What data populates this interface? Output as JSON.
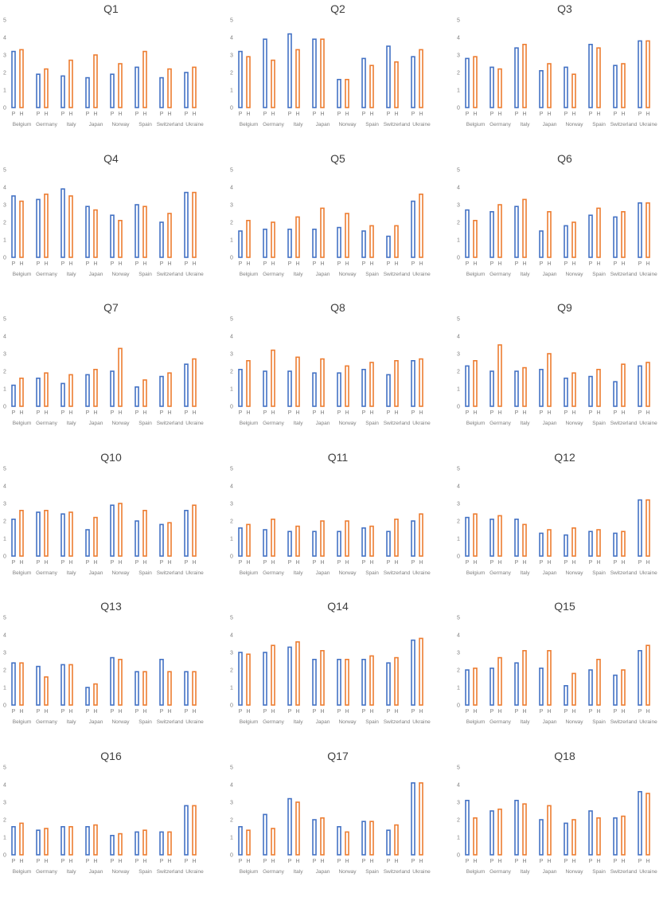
{
  "colors": {
    "P": "#4472c4",
    "H": "#ed7d31",
    "text": "#7f7f7f",
    "title": "#404040"
  },
  "chart_data": [
    {
      "type": "bar",
      "title": "Q1",
      "categories": [
        "Belgium",
        "Germany",
        "Italy",
        "Japan",
        "Norway",
        "Spain",
        "Switzerland",
        "Ukraine"
      ],
      "subcategories": [
        "P",
        "H"
      ],
      "ylim": [
        0,
        5
      ],
      "yticks": [
        "0",
        "1",
        "2",
        "3",
        "4",
        "5"
      ],
      "grid": false,
      "series": [
        {
          "name": "P",
          "values": [
            3.2,
            1.9,
            1.8,
            1.7,
            1.9,
            2.3,
            1.7,
            2.0
          ]
        },
        {
          "name": "H",
          "values": [
            3.3,
            2.2,
            2.7,
            3.0,
            2.5,
            3.2,
            2.2,
            2.3
          ]
        }
      ]
    },
    {
      "type": "bar",
      "title": "Q2",
      "categories": [
        "Belgium",
        "Germany",
        "Italy",
        "Japan",
        "Norway",
        "Spain",
        "Switzerland",
        "Ukraine"
      ],
      "subcategories": [
        "P",
        "H"
      ],
      "ylim": [
        0,
        5
      ],
      "yticks": [
        "0",
        "1",
        "2",
        "3",
        "4",
        "5"
      ],
      "grid": false,
      "series": [
        {
          "name": "P",
          "values": [
            3.2,
            3.9,
            4.2,
            3.9,
            1.6,
            2.8,
            3.5,
            2.9
          ]
        },
        {
          "name": "H",
          "values": [
            2.9,
            2.7,
            3.3,
            3.9,
            1.6,
            2.4,
            2.6,
            3.3
          ]
        }
      ]
    },
    {
      "type": "bar",
      "title": "Q3",
      "categories": [
        "Belgium",
        "Germany",
        "Italy",
        "Japan",
        "Norway",
        "Spain",
        "Switzerland",
        "Ukraine"
      ],
      "subcategories": [
        "P",
        "H"
      ],
      "ylim": [
        0,
        5
      ],
      "yticks": [
        "0",
        "1",
        "2",
        "3",
        "4",
        "5"
      ],
      "grid": false,
      "series": [
        {
          "name": "P",
          "values": [
            2.8,
            2.3,
            3.4,
            2.1,
            2.3,
            3.6,
            2.4,
            3.8
          ]
        },
        {
          "name": "H",
          "values": [
            2.9,
            2.2,
            3.6,
            2.5,
            1.9,
            3.4,
            2.5,
            3.8
          ]
        }
      ]
    },
    {
      "type": "bar",
      "title": "Q4",
      "categories": [
        "Belgium",
        "Germany",
        "Italy",
        "Japan",
        "Norway",
        "Spain",
        "Switzerland",
        "Ukraine"
      ],
      "subcategories": [
        "P",
        "H"
      ],
      "ylim": [
        0,
        5
      ],
      "yticks": [
        "0",
        "1",
        "2",
        "3",
        "4",
        "5"
      ],
      "grid": false,
      "series": [
        {
          "name": "P",
          "values": [
            3.5,
            3.3,
            3.9,
            2.9,
            2.4,
            3.0,
            2.0,
            3.7
          ]
        },
        {
          "name": "H",
          "values": [
            3.2,
            3.6,
            3.5,
            2.7,
            2.1,
            2.9,
            2.5,
            3.7
          ]
        }
      ]
    },
    {
      "type": "bar",
      "title": "Q5",
      "categories": [
        "Belgium",
        "Germany",
        "Italy",
        "Japan",
        "Norway",
        "Spain",
        "Switzerland",
        "Ukraine"
      ],
      "subcategories": [
        "P",
        "H"
      ],
      "ylim": [
        0,
        5
      ],
      "yticks": [
        "0",
        "1",
        "2",
        "3",
        "4",
        "5"
      ],
      "grid": false,
      "series": [
        {
          "name": "P",
          "values": [
            1.5,
            1.6,
            1.6,
            1.6,
            1.7,
            1.5,
            1.2,
            3.2
          ]
        },
        {
          "name": "H",
          "values": [
            2.1,
            2.0,
            2.3,
            2.8,
            2.5,
            1.8,
            1.8,
            3.6
          ]
        }
      ]
    },
    {
      "type": "bar",
      "title": "Q6",
      "categories": [
        "Belgium",
        "Germany",
        "Italy",
        "Japan",
        "Norway",
        "Spain",
        "Switzerland",
        "Ukraine"
      ],
      "subcategories": [
        "P",
        "H"
      ],
      "ylim": [
        0,
        5
      ],
      "yticks": [
        "0",
        "1",
        "2",
        "3",
        "4",
        "5"
      ],
      "grid": false,
      "series": [
        {
          "name": "P",
          "values": [
            2.7,
            2.6,
            2.9,
            1.5,
            1.8,
            2.4,
            2.3,
            3.1
          ]
        },
        {
          "name": "H",
          "values": [
            2.1,
            3.0,
            3.3,
            2.6,
            2.0,
            2.8,
            2.6,
            3.1
          ]
        }
      ]
    },
    {
      "type": "bar",
      "title": "Q7",
      "categories": [
        "Belgium",
        "Germany",
        "Italy",
        "Japan",
        "Norway",
        "Spain",
        "Switzerland",
        "Ukraine"
      ],
      "subcategories": [
        "P",
        "H"
      ],
      "ylim": [
        0,
        5
      ],
      "yticks": [
        "0",
        "1",
        "2",
        "3",
        "4",
        "5"
      ],
      "grid": false,
      "series": [
        {
          "name": "P",
          "values": [
            1.2,
            1.6,
            1.3,
            1.8,
            2.0,
            1.1,
            1.7,
            2.4
          ]
        },
        {
          "name": "H",
          "values": [
            1.6,
            1.9,
            1.8,
            2.1,
            3.3,
            1.5,
            1.9,
            2.7
          ]
        }
      ]
    },
    {
      "type": "bar",
      "title": "Q8",
      "categories": [
        "Belgium",
        "Germany",
        "Italy",
        "Japan",
        "Norway",
        "Spain",
        "Switzerland",
        "Ukraine"
      ],
      "subcategories": [
        "P",
        "H"
      ],
      "ylim": [
        0,
        5
      ],
      "yticks": [
        "0",
        "1",
        "2",
        "3",
        "4",
        "5"
      ],
      "grid": false,
      "series": [
        {
          "name": "P",
          "values": [
            2.1,
            2.0,
            2.0,
            1.9,
            1.9,
            2.1,
            1.8,
            2.6
          ]
        },
        {
          "name": "H",
          "values": [
            2.6,
            3.2,
            2.8,
            2.7,
            2.3,
            2.5,
            2.6,
            2.7
          ]
        }
      ]
    },
    {
      "type": "bar",
      "title": "Q9",
      "categories": [
        "Belgium",
        "Germany",
        "Italy",
        "Japan",
        "Norway",
        "Spain",
        "Switzerland",
        "Ukraine"
      ],
      "subcategories": [
        "P",
        "H"
      ],
      "ylim": [
        0,
        5
      ],
      "yticks": [
        "0",
        "1",
        "2",
        "3",
        "4",
        "5"
      ],
      "grid": false,
      "series": [
        {
          "name": "P",
          "values": [
            2.3,
            2.0,
            2.0,
            2.1,
            1.6,
            1.7,
            1.4,
            2.3
          ]
        },
        {
          "name": "H",
          "values": [
            2.6,
            3.5,
            2.2,
            3.0,
            1.9,
            2.1,
            2.4,
            2.5
          ]
        }
      ]
    },
    {
      "type": "bar",
      "title": "Q10",
      "categories": [
        "Belgium",
        "Germany",
        "Italy",
        "Japan",
        "Norway",
        "Spain",
        "Switzerland",
        "Ukraine"
      ],
      "subcategories": [
        "P",
        "H"
      ],
      "ylim": [
        0,
        5
      ],
      "yticks": [
        "0",
        "1",
        "2",
        "3",
        "4",
        "5"
      ],
      "grid": false,
      "series": [
        {
          "name": "P",
          "values": [
            2.1,
            2.5,
            2.4,
            1.5,
            2.9,
            2.0,
            1.8,
            2.6
          ]
        },
        {
          "name": "H",
          "values": [
            2.6,
            2.6,
            2.5,
            2.2,
            3.0,
            2.6,
            1.9,
            2.9
          ]
        }
      ]
    },
    {
      "type": "bar",
      "title": "Q11",
      "categories": [
        "Belgium",
        "Germany",
        "Italy",
        "Japan",
        "Norway",
        "Spain",
        "Switzerland",
        "Ukraine"
      ],
      "subcategories": [
        "P",
        "H"
      ],
      "ylim": [
        0,
        5
      ],
      "yticks": [
        "0",
        "1",
        "2",
        "3",
        "4",
        "5"
      ],
      "grid": false,
      "series": [
        {
          "name": "P",
          "values": [
            1.6,
            1.5,
            1.4,
            1.4,
            1.4,
            1.6,
            1.4,
            2.0
          ]
        },
        {
          "name": "H",
          "values": [
            1.8,
            2.1,
            1.7,
            2.0,
            2.0,
            1.7,
            2.1,
            2.4
          ]
        }
      ]
    },
    {
      "type": "bar",
      "title": "Q12",
      "categories": [
        "Belgium",
        "Germany",
        "Italy",
        "Japan",
        "Norway",
        "Spain",
        "Switzerland",
        "Ukraine"
      ],
      "subcategories": [
        "P",
        "H"
      ],
      "ylim": [
        0,
        5
      ],
      "yticks": [
        "0",
        "1",
        "2",
        "3",
        "4",
        "5"
      ],
      "grid": false,
      "series": [
        {
          "name": "P",
          "values": [
            2.2,
            2.1,
            2.1,
            1.3,
            1.2,
            1.4,
            1.3,
            3.2
          ]
        },
        {
          "name": "H",
          "values": [
            2.4,
            2.3,
            1.8,
            1.5,
            1.6,
            1.5,
            1.4,
            3.2
          ]
        }
      ]
    },
    {
      "type": "bar",
      "title": "Q13",
      "categories": [
        "Belgium",
        "Germany",
        "Italy",
        "Japan",
        "Norway",
        "Spain",
        "Switzerland",
        "Ukraine"
      ],
      "subcategories": [
        "P",
        "H"
      ],
      "ylim": [
        0,
        5
      ],
      "yticks": [
        "0",
        "1",
        "2",
        "3",
        "4",
        "5"
      ],
      "grid": false,
      "series": [
        {
          "name": "P",
          "values": [
            2.4,
            2.2,
            2.3,
            1.0,
            2.7,
            1.9,
            2.6,
            1.9
          ]
        },
        {
          "name": "H",
          "values": [
            2.4,
            1.6,
            2.3,
            1.2,
            2.6,
            1.9,
            1.9,
            1.9
          ]
        }
      ]
    },
    {
      "type": "bar",
      "title": "Q14",
      "categories": [
        "Belgium",
        "Germany",
        "Italy",
        "Japan",
        "Norway",
        "Spain",
        "Switzerland",
        "Ukraine"
      ],
      "subcategories": [
        "P",
        "H"
      ],
      "ylim": [
        0,
        5
      ],
      "yticks": [
        "0",
        "1",
        "2",
        "3",
        "4",
        "5"
      ],
      "grid": false,
      "series": [
        {
          "name": "P",
          "values": [
            3.0,
            3.0,
            3.3,
            2.6,
            2.6,
            2.6,
            2.4,
            3.7
          ]
        },
        {
          "name": "H",
          "values": [
            2.9,
            3.4,
            3.6,
            3.1,
            2.6,
            2.8,
            2.7,
            3.8
          ]
        }
      ]
    },
    {
      "type": "bar",
      "title": "Q15",
      "categories": [
        "Belgium",
        "Germany",
        "Italy",
        "Japan",
        "Norway",
        "Spain",
        "Switzerland",
        "Ukraine"
      ],
      "subcategories": [
        "P",
        "H"
      ],
      "ylim": [
        0,
        5
      ],
      "yticks": [
        "0",
        "1",
        "2",
        "3",
        "4",
        "5"
      ],
      "grid": false,
      "series": [
        {
          "name": "P",
          "values": [
            2.0,
            2.1,
            2.4,
            2.1,
            1.1,
            2.0,
            1.7,
            3.1
          ]
        },
        {
          "name": "H",
          "values": [
            2.1,
            2.7,
            3.1,
            3.1,
            1.8,
            2.6,
            2.0,
            3.4
          ]
        }
      ]
    },
    {
      "type": "bar",
      "title": "Q16",
      "categories": [
        "Belgium",
        "Germany",
        "Italy",
        "Japan",
        "Norway",
        "Spain",
        "Switzerland",
        "Ukraine"
      ],
      "subcategories": [
        "P",
        "H"
      ],
      "ylim": [
        0,
        5
      ],
      "yticks": [
        "0",
        "1",
        "2",
        "3",
        "4",
        "5"
      ],
      "grid": false,
      "series": [
        {
          "name": "P",
          "values": [
            1.6,
            1.4,
            1.6,
            1.6,
            1.1,
            1.3,
            1.3,
            2.8
          ]
        },
        {
          "name": "H",
          "values": [
            1.8,
            1.5,
            1.6,
            1.7,
            1.2,
            1.4,
            1.3,
            2.8
          ]
        }
      ]
    },
    {
      "type": "bar",
      "title": "Q17",
      "categories": [
        "Belgium",
        "Germany",
        "Italy",
        "Japan",
        "Norway",
        "Spain",
        "Switzerland",
        "Ukraine"
      ],
      "subcategories": [
        "P",
        "H"
      ],
      "ylim": [
        0,
        5
      ],
      "yticks": [
        "0",
        "1",
        "2",
        "3",
        "4",
        "5"
      ],
      "grid": false,
      "series": [
        {
          "name": "P",
          "values": [
            1.6,
            2.3,
            3.2,
            2.0,
            1.6,
            1.9,
            1.4,
            4.1
          ]
        },
        {
          "name": "H",
          "values": [
            1.4,
            1.5,
            3.0,
            2.1,
            1.3,
            1.9,
            1.7,
            4.1
          ]
        }
      ]
    },
    {
      "type": "bar",
      "title": "Q18",
      "categories": [
        "Belgium",
        "Germany",
        "Italy",
        "Japan",
        "Norway",
        "Spain",
        "Switzerland",
        "Ukraine"
      ],
      "subcategories": [
        "P",
        "H"
      ],
      "ylim": [
        0,
        5
      ],
      "yticks": [
        "0",
        "1",
        "2",
        "3",
        "4",
        "5"
      ],
      "grid": false,
      "series": [
        {
          "name": "P",
          "values": [
            3.1,
            2.5,
            3.1,
            2.0,
            1.8,
            2.5,
            2.1,
            3.6
          ]
        },
        {
          "name": "H",
          "values": [
            2.1,
            2.6,
            2.9,
            2.8,
            2.0,
            2.1,
            2.2,
            3.5
          ]
        }
      ]
    }
  ]
}
